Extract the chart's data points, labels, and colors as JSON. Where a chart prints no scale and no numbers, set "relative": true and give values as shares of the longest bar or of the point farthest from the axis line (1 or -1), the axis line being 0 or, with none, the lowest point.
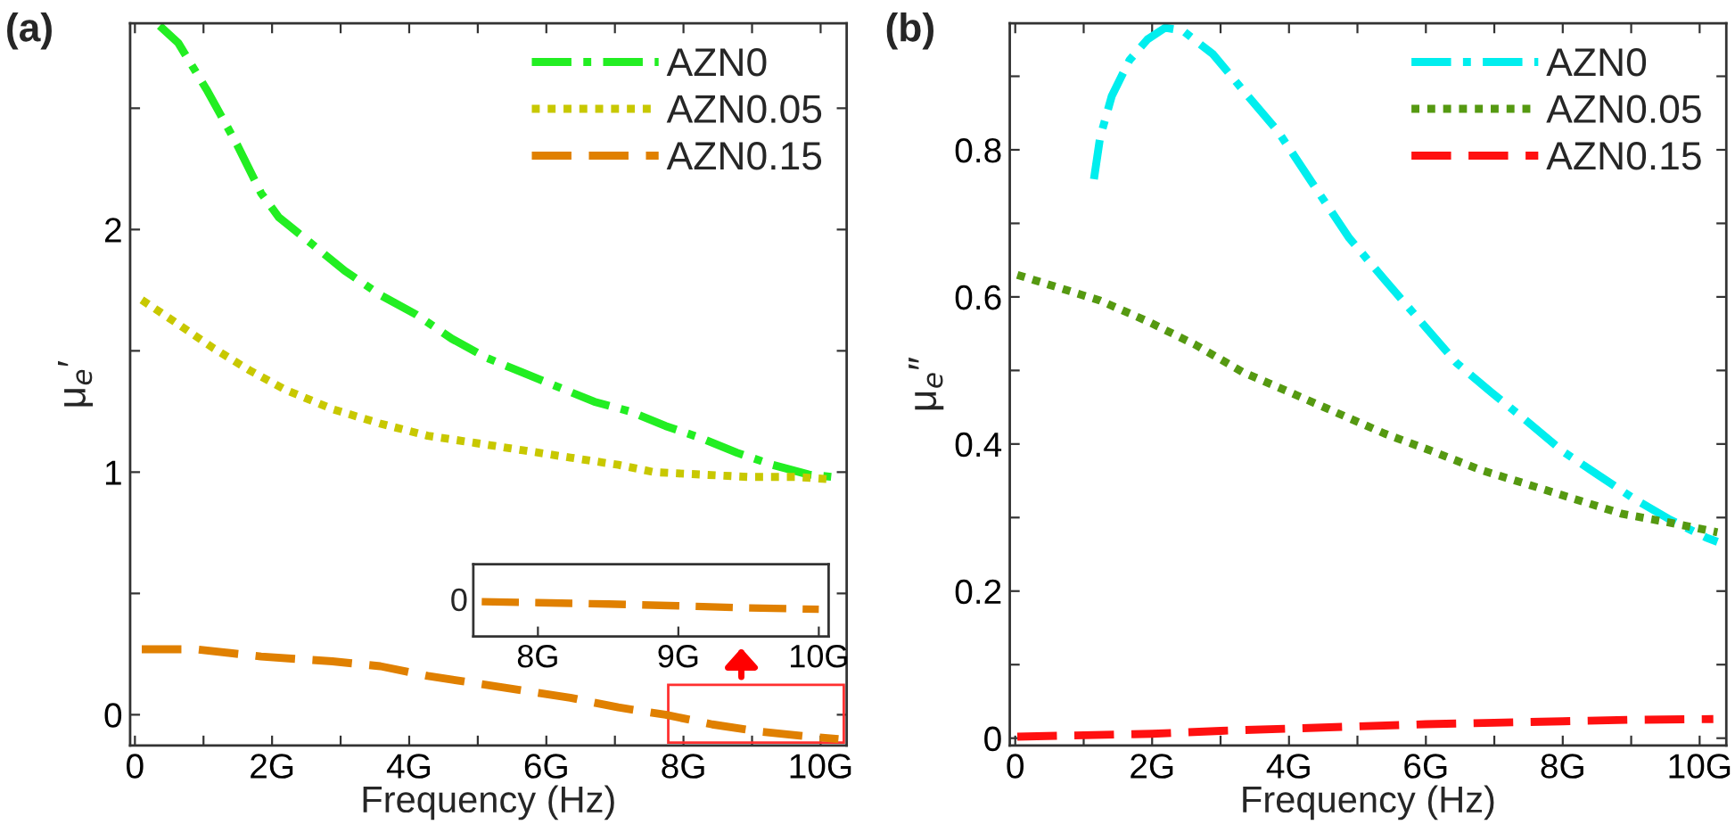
{
  "chart_data": [
    {
      "type": "line",
      "title": "(a)",
      "xlabel": "Frequency (Hz)",
      "ylabel": "μ$_{e}$′",
      "legend": "top right",
      "grid": false,
      "xlim": [
        -0.07,
        10.38
      ],
      "ylim": [
        -0.127,
        2.85
      ],
      "xticks": [
        0,
        {
          "value": 1,
          "label": null
        },
        {
          "value": 2,
          "label": "2G"
        },
        {
          "value": 3,
          "label": null
        },
        {
          "value": 4,
          "label": "4G"
        },
        {
          "value": 5,
          "label": null
        },
        {
          "value": 6,
          "label": "6G"
        },
        {
          "value": 7,
          "label": null
        },
        {
          "value": 8,
          "label": "8G"
        },
        {
          "value": 9,
          "label": null
        },
        {
          "value": 10,
          "label": "10G"
        }
      ],
      "yticks": [
        0,
        {
          "value": 0.5,
          "label": null
        },
        1,
        {
          "value": 1.5,
          "label": null
        },
        2,
        {
          "value": 2.5,
          "label": null
        }
      ],
      "series": [
        {
          "name": "AZN0",
          "color": "#22ee22",
          "line_style": "dashdot",
          "x": [
            0.36,
            0.63,
            1.06,
            1.49,
            1.84,
            2.1,
            2.54,
            3.06,
            3.58,
            4.1,
            4.62,
            5.14,
            5.66,
            6.18,
            6.7,
            7.22,
            7.74,
            8.26,
            8.78,
            9.3,
            9.83,
            10.17
          ],
          "values": [
            2.84,
            2.77,
            2.57,
            2.35,
            2.15,
            2.05,
            1.95,
            1.83,
            1.73,
            1.65,
            1.55,
            1.47,
            1.41,
            1.35,
            1.29,
            1.25,
            1.19,
            1.14,
            1.08,
            1.03,
            0.99,
            0.98
          ]
        },
        {
          "name": "AZN0.05",
          "color": "#c8c800",
          "line_style": "dotted",
          "x": [
            0.1,
            0.63,
            1.15,
            1.67,
            2.19,
            2.88,
            3.58,
            4.27,
            4.97,
            5.66,
            6.35,
            7.05,
            7.57,
            8.26,
            8.96,
            9.65,
            10.17
          ],
          "values": [
            1.71,
            1.61,
            1.51,
            1.42,
            1.34,
            1.26,
            1.2,
            1.15,
            1.12,
            1.09,
            1.06,
            1.03,
            1.0,
            0.99,
            0.98,
            0.98,
            0.97
          ]
        },
        {
          "name": "AZN0.15",
          "color": "#e08000",
          "line_style": "dashed",
          "x": [
            0.1,
            0.89,
            1.84,
            2.88,
            3.58,
            4.27,
            4.97,
            5.66,
            6.35,
            7.05,
            7.74,
            8.42,
            9.13,
            9.83,
            10.26
          ],
          "values": [
            0.27,
            0.27,
            0.24,
            0.22,
            0.2,
            0.16,
            0.13,
            0.1,
            0.07,
            0.03,
            0.0,
            -0.04,
            -0.07,
            -0.09,
            -0.1
          ]
        }
      ]
    },
    {
      "type": "line",
      "title": "(b)",
      "xlabel": "Frequency (Hz)",
      "ylabel": "μ$_{e}$″",
      "legend": "top right",
      "grid": false,
      "xlim": [
        -0.08,
        10.39
      ],
      "ylim": [
        -0.01,
        0.972
      ],
      "xticks": [
        0,
        {
          "value": 1,
          "label": null
        },
        {
          "value": 2,
          "label": "2G"
        },
        {
          "value": 3,
          "label": null
        },
        {
          "value": 4,
          "label": "4G"
        },
        {
          "value": 5,
          "label": null
        },
        {
          "value": 6,
          "label": "6G"
        },
        {
          "value": 7,
          "label": null
        },
        {
          "value": 8,
          "label": "8G"
        },
        {
          "value": 9,
          "label": null
        },
        {
          "value": 10,
          "label": "10G"
        }
      ],
      "yticks": [
        0,
        {
          "value": 0.1,
          "label": null
        },
        0.2,
        {
          "value": 0.3,
          "label": null
        },
        0.4,
        {
          "value": 0.5,
          "label": null
        },
        0.6,
        {
          "value": 0.7,
          "label": null
        },
        0.8,
        {
          "value": 0.9,
          "label": null
        }
      ],
      "series": [
        {
          "name": "AZN0",
          "color": "#00eeee",
          "line_style": "dashdot",
          "x": [
            1.15,
            1.24,
            1.41,
            1.67,
            1.93,
            2.19,
            2.45,
            2.89,
            3.32,
            3.84,
            4.36,
            4.88,
            5.4,
            5.92,
            6.45,
            6.96,
            7.49,
            8.0,
            8.53,
            9.05,
            9.57,
            10.09,
            10.26
          ],
          "values": [
            0.76,
            0.817,
            0.873,
            0.922,
            0.95,
            0.966,
            0.962,
            0.93,
            0.882,
            0.825,
            0.752,
            0.68,
            0.623,
            0.567,
            0.51,
            0.47,
            0.43,
            0.39,
            0.357,
            0.325,
            0.297,
            0.273,
            0.267
          ]
        },
        {
          "name": "AZN0.05",
          "color": "#559911",
          "line_style": "dotted",
          "x": [
            0.03,
            0.55,
            1.24,
            1.93,
            2.63,
            3.32,
            4.02,
            4.71,
            5.4,
            6.1,
            6.79,
            7.49,
            8.18,
            8.87,
            9.57,
            10.26
          ],
          "values": [
            0.63,
            0.615,
            0.595,
            0.567,
            0.535,
            0.498,
            0.47,
            0.442,
            0.414,
            0.39,
            0.365,
            0.345,
            0.325,
            0.305,
            0.293,
            0.28
          ]
        },
        {
          "name": "AZN0.15",
          "color": "#ff1010",
          "line_style": "dashed",
          "x": [
            0.03,
            2,
            3,
            4,
            5,
            6,
            7,
            8,
            9,
            10.2
          ],
          "values": [
            0.002,
            0.006,
            0.01,
            0.013,
            0.016,
            0.019,
            0.021,
            0.023,
            0.025,
            0.026
          ]
        }
      ]
    },
    {
      "type": "line",
      "legend": false,
      "grid": false,
      "xlim": [
        7.54,
        10.07
      ],
      "relative": true,
      "annotations": [
        "0"
      ],
      "xticks": [
        {
          "value": 8,
          "label": "8G"
        },
        {
          "value": 9,
          "label": "9G"
        },
        {
          "value": 10,
          "label": "10G"
        }
      ],
      "series": [
        {
          "color": "#e08000",
          "line_style": "dashed",
          "x": [
            7.6,
            8,
            8.5,
            9,
            9.5,
            10
          ],
          "values": [
            1.0,
            0.97,
            0.93,
            0.88,
            0.82,
            0.78
          ]
        }
      ]
    }
  ]
}
